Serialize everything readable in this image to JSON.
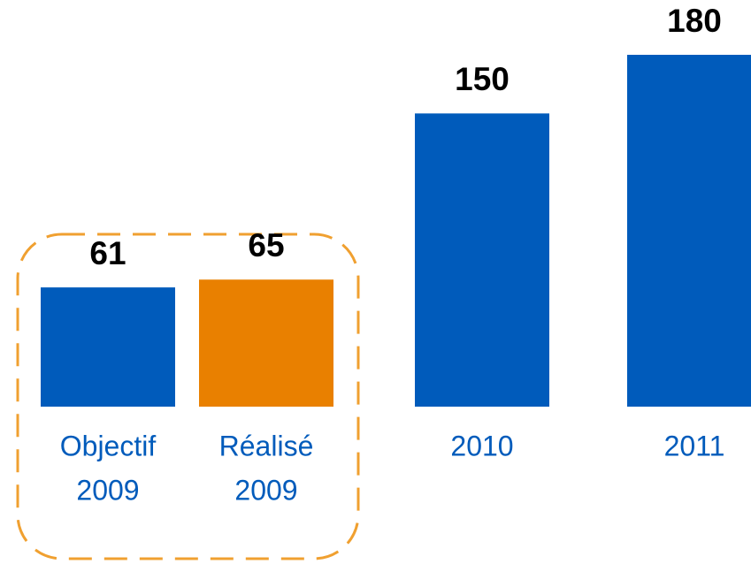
{
  "chart_data": {
    "type": "bar",
    "categories": [
      [
        "Objectif",
        "2009"
      ],
      [
        "Réalisé",
        "2009"
      ],
      [
        "2010"
      ],
      [
        "2011"
      ]
    ],
    "series": [
      {
        "values": [
          61,
          65,
          150,
          180
        ],
        "colors": [
          "#005bbb",
          "#e98000",
          "#005bbb",
          "#005bbb"
        ]
      }
    ],
    "highlight_color": "#f0a030"
  }
}
